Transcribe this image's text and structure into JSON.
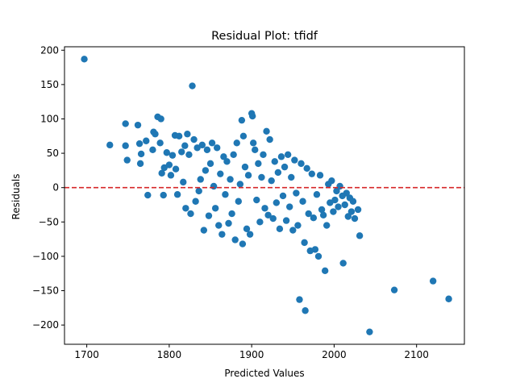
{
  "chart_data": {
    "type": "scatter",
    "title": "Residual Plot: tfidf",
    "xlabel": "Predicted Values",
    "ylabel": "Residuals",
    "xlim": [
      1673,
      2158
    ],
    "ylim": [
      -228,
      205
    ],
    "xticks": [
      1700,
      1800,
      1900,
      2000,
      2100
    ],
    "xtick_labels": [
      "1700",
      "1800",
      "1900",
      "2000",
      "2100"
    ],
    "yticks": [
      -200,
      -150,
      -100,
      -50,
      0,
      50,
      100,
      150,
      200
    ],
    "ytick_labels": [
      "−200",
      "−150",
      "−100",
      "−50",
      "0",
      "50",
      "100",
      "150",
      "200"
    ],
    "grid": false,
    "reference_line": {
      "y": 0,
      "style": "dashed",
      "color": "#d62728"
    },
    "marker_color": "#1f77b4",
    "series": [
      {
        "points": [
          [
            1697,
            187
          ],
          [
            1728,
            62
          ],
          [
            1747,
            93
          ],
          [
            1747,
            61
          ],
          [
            1749,
            40
          ],
          [
            1762,
            91
          ],
          [
            1764,
            64
          ],
          [
            1765,
            35
          ],
          [
            1766,
            49
          ],
          [
            1772,
            68
          ],
          [
            1774,
            -11
          ],
          [
            1780,
            55
          ],
          [
            1781,
            81
          ],
          [
            1783,
            78
          ],
          [
            1786,
            103
          ],
          [
            1789,
            65
          ],
          [
            1790,
            100
          ],
          [
            1791,
            21
          ],
          [
            1793,
            -11
          ],
          [
            1794,
            29
          ],
          [
            1797,
            51
          ],
          [
            1800,
            33
          ],
          [
            1802,
            18
          ],
          [
            1804,
            47
          ],
          [
            1807,
            76
          ],
          [
            1808,
            27
          ],
          [
            1810,
            -10
          ],
          [
            1812,
            75
          ],
          [
            1815,
            52
          ],
          [
            1817,
            8
          ],
          [
            1819,
            61
          ],
          [
            1820,
            -30
          ],
          [
            1822,
            78
          ],
          [
            1824,
            48
          ],
          [
            1826,
            -38
          ],
          [
            1828,
            148
          ],
          [
            1830,
            70
          ],
          [
            1832,
            -20
          ],
          [
            1834,
            58
          ],
          [
            1836,
            -5
          ],
          [
            1838,
            12
          ],
          [
            1840,
            62
          ],
          [
            1842,
            -62
          ],
          [
            1844,
            25
          ],
          [
            1846,
            55
          ],
          [
            1848,
            -41
          ],
          [
            1850,
            35
          ],
          [
            1852,
            65
          ],
          [
            1854,
            2
          ],
          [
            1856,
            -30
          ],
          [
            1858,
            58
          ],
          [
            1860,
            -55
          ],
          [
            1862,
            20
          ],
          [
            1864,
            -68
          ],
          [
            1866,
            45
          ],
          [
            1868,
            -10
          ],
          [
            1870,
            38
          ],
          [
            1872,
            -52
          ],
          [
            1874,
            12
          ],
          [
            1876,
            -38
          ],
          [
            1878,
            48
          ],
          [
            1880,
            -76
          ],
          [
            1882,
            65
          ],
          [
            1884,
            -20
          ],
          [
            1886,
            5
          ],
          [
            1888,
            98
          ],
          [
            1889,
            -82
          ],
          [
            1890,
            75
          ],
          [
            1892,
            30
          ],
          [
            1894,
            -60
          ],
          [
            1896,
            18
          ],
          [
            1898,
            -68
          ],
          [
            1900,
            108
          ],
          [
            1901,
            104
          ],
          [
            1902,
            65
          ],
          [
            1904,
            55
          ],
          [
            1906,
            -18
          ],
          [
            1908,
            35
          ],
          [
            1910,
            -50
          ],
          [
            1912,
            15
          ],
          [
            1914,
            48
          ],
          [
            1916,
            -30
          ],
          [
            1918,
            82
          ],
          [
            1920,
            -40
          ],
          [
            1922,
            70
          ],
          [
            1924,
            10
          ],
          [
            1926,
            -45
          ],
          [
            1928,
            38
          ],
          [
            1930,
            -22
          ],
          [
            1932,
            22
          ],
          [
            1934,
            -60
          ],
          [
            1936,
            45
          ],
          [
            1938,
            -12
          ],
          [
            1940,
            30
          ],
          [
            1942,
            -48
          ],
          [
            1944,
            48
          ],
          [
            1946,
            -28
          ],
          [
            1948,
            15
          ],
          [
            1950,
            -62
          ],
          [
            1952,
            40
          ],
          [
            1954,
            -8
          ],
          [
            1956,
            -55
          ],
          [
            1958,
            -163
          ],
          [
            1960,
            35
          ],
          [
            1962,
            -20
          ],
          [
            1964,
            -80
          ],
          [
            1965,
            -179
          ],
          [
            1967,
            28
          ],
          [
            1969,
            -38
          ],
          [
            1971,
            -92
          ],
          [
            1973,
            20
          ],
          [
            1975,
            -44
          ],
          [
            1977,
            -90
          ],
          [
            1979,
            -10
          ],
          [
            1981,
            -100
          ],
          [
            1983,
            18
          ],
          [
            1985,
            -32
          ],
          [
            1987,
            -40
          ],
          [
            1989,
            -121
          ],
          [
            1991,
            -55
          ],
          [
            1993,
            5
          ],
          [
            1995,
            -22
          ],
          [
            1997,
            10
          ],
          [
            1999,
            -35
          ],
          [
            2001,
            -18
          ],
          [
            2003,
            -5
          ],
          [
            2005,
            -28
          ],
          [
            2007,
            2
          ],
          [
            2010,
            -12
          ],
          [
            2011,
            -110
          ],
          [
            2013,
            -25
          ],
          [
            2015,
            -8
          ],
          [
            2017,
            -42
          ],
          [
            2019,
            -15
          ],
          [
            2021,
            -35
          ],
          [
            2023,
            -20
          ],
          [
            2025,
            -45
          ],
          [
            2029,
            -32
          ],
          [
            2031,
            -70
          ],
          [
            2043,
            -210
          ],
          [
            2073,
            -149
          ],
          [
            2120,
            -136
          ],
          [
            2139,
            -162
          ]
        ]
      }
    ]
  }
}
